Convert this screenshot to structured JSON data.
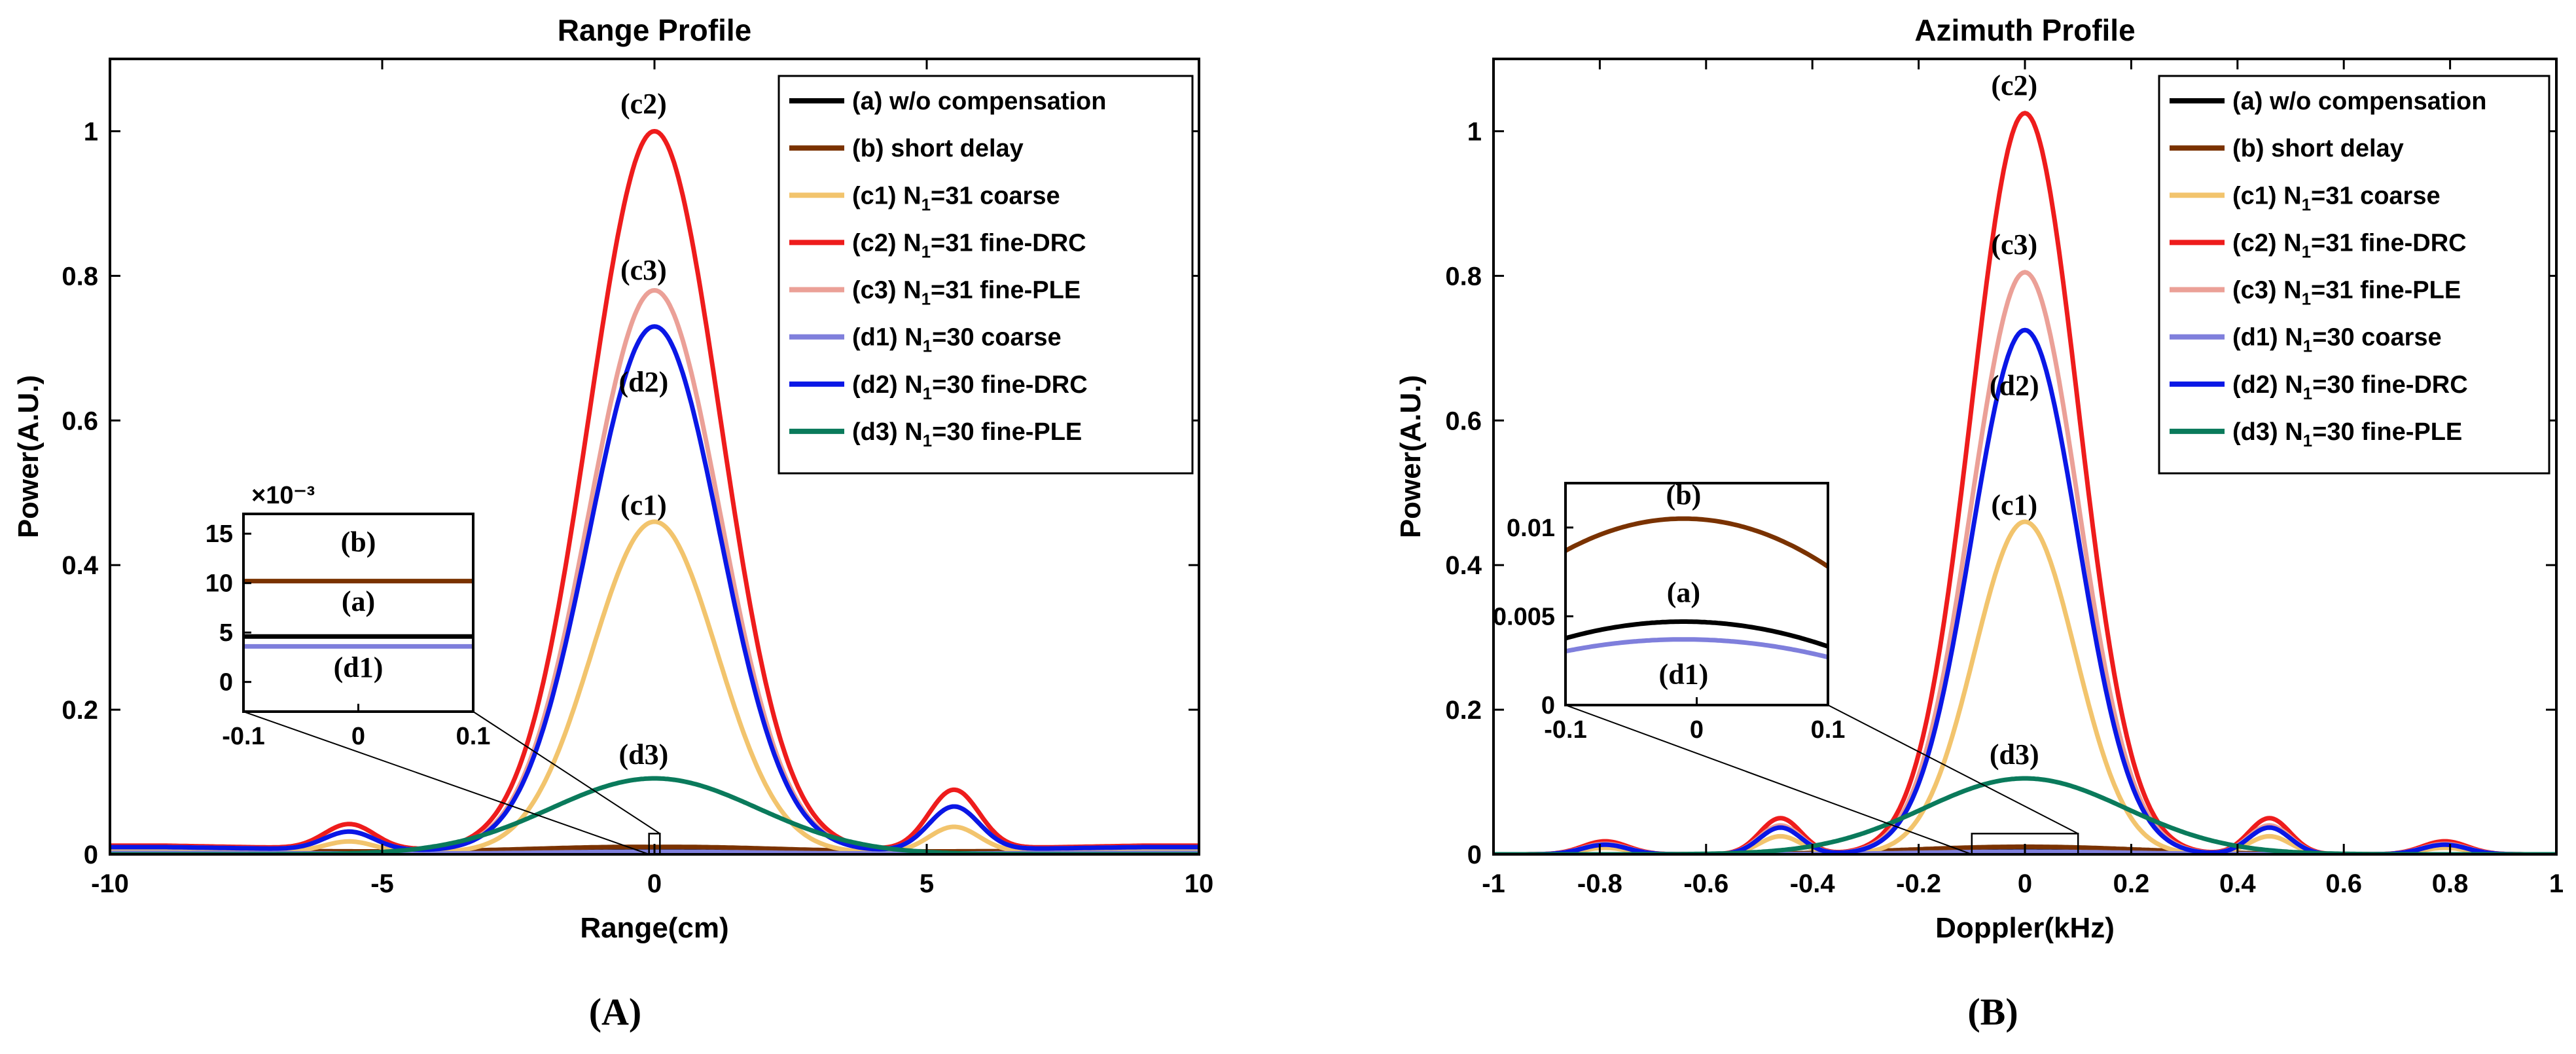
{
  "colors": {
    "a": "#000000",
    "b": "#7a3200",
    "c1": "#f2c46d",
    "c2": "#ee1c1c",
    "c3": "#eba097",
    "d1": "#7f7fdc",
    "d2": "#0a17e6",
    "d3": "#0a7a5b"
  },
  "chart_data": [
    {
      "type": "line",
      "panel_label": "(A)",
      "title": "Range Profile",
      "xlabel": "Range(cm)",
      "ylabel": "Power(A.U.)",
      "xlim": [
        -10,
        10
      ],
      "ylim": [
        0,
        1.1
      ],
      "xticks": [
        -10,
        -5,
        0,
        5,
        10
      ],
      "xtick_labels": [
        "-10",
        "-5",
        "0",
        "5",
        "10"
      ],
      "yticks": [
        0,
        0.2,
        0.4,
        0.6,
        0.8,
        1
      ],
      "ytick_labels": [
        "0",
        "0.2",
        "0.4",
        "0.6",
        "0.8",
        "1"
      ],
      "legend_position": "top-right",
      "series": [
        {
          "key": "a",
          "label": "(a) w/o compensation",
          "peak": 0.0045,
          "sigma": 1.9,
          "side_lobe": 0.0,
          "floor": 0.003
        },
        {
          "key": "b",
          "label": "(b) short delay",
          "peak": 0.0102,
          "sigma": 2.2,
          "side_lobe": 0.0,
          "floor": 0.006
        },
        {
          "key": "c1",
          "label": "(c1) N1=31 coarse",
          "peak": 0.46,
          "sigma": 1.15,
          "side_lobe": 0.035,
          "floor": 0.005
        },
        {
          "key": "c2",
          "label": "(c2) N1=31 fine-DRC",
          "peak": 1.0,
          "sigma": 1.2,
          "side_lobe": 0.082,
          "floor": 0.012
        },
        {
          "key": "c3",
          "label": "(c3) N1=31 fine-PLE",
          "peak": 0.78,
          "sigma": 1.2,
          "side_lobe": 0.06,
          "floor": 0.01
        },
        {
          "key": "d1",
          "label": "(d1) N1=30 coarse",
          "peak": 0.0035,
          "sigma": 1.9,
          "side_lobe": 0.0,
          "floor": 0.002
        },
        {
          "key": "d2",
          "label": "(d2) N1=30 fine-DRC",
          "peak": 0.73,
          "sigma": 1.2,
          "side_lobe": 0.06,
          "floor": 0.01
        },
        {
          "key": "d3",
          "label": "(d3) N1=30 fine-PLE",
          "peak": 0.105,
          "sigma": 1.9,
          "side_lobe": 0.0,
          "floor": 0.0
        }
      ],
      "annotations": [
        {
          "text": "(c2)",
          "x": -0.2,
          "y": 1.025
        },
        {
          "text": "(c3)",
          "x": -0.2,
          "y": 0.795
        },
        {
          "text": "(d2)",
          "x": -0.2,
          "y": 0.64
        },
        {
          "text": "(c1)",
          "x": -0.2,
          "y": 0.47
        },
        {
          "text": "(d3)",
          "x": -0.2,
          "y": 0.125
        }
      ],
      "zoom_box": {
        "x": [
          -0.1,
          0.1
        ],
        "y": [
          0,
          0.016
        ]
      },
      "inset": {
        "xlim": [
          -0.1,
          0.1
        ],
        "ylim": [
          -0.003,
          0.017
        ],
        "xtick_labels": [
          "-0.1",
          "0",
          "0.1"
        ],
        "xticks": [
          -0.1,
          0,
          0.1
        ],
        "yticks": [
          0,
          0.005,
          0.01,
          0.015
        ],
        "ytick_labels": [
          "0",
          "5",
          "10",
          "15"
        ],
        "exponent": "×10⁻³",
        "lines": [
          {
            "key": "b",
            "y": 0.0102
          },
          {
            "key": "a",
            "y": 0.0046
          },
          {
            "key": "d1",
            "y": 0.0036
          }
        ],
        "annotations": [
          {
            "text": "(b)",
            "x": 0.0,
            "y": 0.0132
          },
          {
            "text": "(a)",
            "x": 0.0,
            "y": 0.0072
          },
          {
            "text": "(d1)",
            "x": 0.0,
            "y": 0.0005
          }
        ]
      }
    },
    {
      "type": "line",
      "panel_label": "(B)",
      "title": "Azimuth Profile",
      "xlabel": "Doppler(kHz)",
      "ylabel": "Power(A.U.)",
      "xlim": [
        -1,
        1
      ],
      "ylim": [
        0,
        1.1
      ],
      "xticks": [
        -1,
        -0.8,
        -0.6,
        -0.4,
        -0.2,
        0,
        0.2,
        0.4,
        0.6,
        0.8,
        1
      ],
      "xtick_labels": [
        "-1",
        "-0.8",
        "-0.6",
        "-0.4",
        "-0.2",
        "0",
        "0.2",
        "0.4",
        "0.6",
        "0.8",
        "1"
      ],
      "yticks": [
        0,
        0.2,
        0.4,
        0.6,
        0.8,
        1
      ],
      "ytick_labels": [
        "0",
        "0.2",
        "0.4",
        "0.6",
        "0.8",
        "1"
      ],
      "legend_position": "top-right",
      "series": [
        {
          "key": "a",
          "label": "(a) w/o compensation",
          "peak": 0.0045,
          "sigma": 0.2,
          "side_lobe": 0.0,
          "floor": 0.0
        },
        {
          "key": "b",
          "label": "(b) short delay",
          "peak": 0.0105,
          "sigma": 0.22,
          "side_lobe": 0.0,
          "floor": 0.0
        },
        {
          "key": "c1",
          "label": "(c1) N1=31 coarse",
          "peak": 0.46,
          "sigma": 0.095,
          "side_lobe": 0.025,
          "floor": 0.0
        },
        {
          "key": "c2",
          "label": "(c2) N1=31 fine-DRC",
          "peak": 1.025,
          "sigma": 0.1,
          "side_lobe": 0.05,
          "floor": 0.0
        },
        {
          "key": "c3",
          "label": "(c3) N1=31 fine-PLE",
          "peak": 0.805,
          "sigma": 0.1,
          "side_lobe": 0.04,
          "floor": 0.0
        },
        {
          "key": "d1",
          "label": "(d1) N1=30 coarse",
          "peak": 0.0036,
          "sigma": 0.2,
          "side_lobe": 0.0,
          "floor": 0.0
        },
        {
          "key": "d2",
          "label": "(d2) N1=30 fine-DRC",
          "peak": 0.725,
          "sigma": 0.1,
          "side_lobe": 0.037,
          "floor": 0.0
        },
        {
          "key": "d3",
          "label": "(d3) N1=30 fine-PLE",
          "peak": 0.105,
          "sigma": 0.19,
          "side_lobe": 0.0,
          "floor": 0.0
        }
      ],
      "annotations": [
        {
          "text": "(c2)",
          "x": -0.02,
          "y": 1.05
        },
        {
          "text": "(c3)",
          "x": -0.02,
          "y": 0.83
        },
        {
          "text": "(d2)",
          "x": -0.02,
          "y": 0.635
        },
        {
          "text": "(c1)",
          "x": -0.02,
          "y": 0.47
        },
        {
          "text": "(d3)",
          "x": -0.02,
          "y": 0.125
        }
      ],
      "zoom_box": {
        "x": [
          -0.1,
          0.1
        ],
        "y": [
          0,
          0.016
        ]
      },
      "inset": {
        "xlim": [
          -0.1,
          0.1
        ],
        "ylim": [
          0,
          0.0125
        ],
        "xtick_labels": [
          "-0.1",
          "0",
          "0.1"
        ],
        "xticks": [
          -0.1,
          0,
          0.1
        ],
        "yticks": [
          0,
          0.005,
          0.01
        ],
        "ytick_labels": [
          "0",
          "0.005",
          "0.01"
        ],
        "exponent": "",
        "curves": [
          {
            "key": "b",
            "peak": 0.0105,
            "edge": 0.0078
          },
          {
            "key": "a",
            "peak": 0.0047,
            "edge": 0.0033
          },
          {
            "key": "d1",
            "peak": 0.0037,
            "edge": 0.0027
          }
        ],
        "annotations": [
          {
            "text": "(b)",
            "x": -0.01,
            "y": 0.0113
          },
          {
            "text": "(a)",
            "x": -0.01,
            "y": 0.0058
          },
          {
            "text": "(d1)",
            "x": -0.01,
            "y": 0.0012
          }
        ]
      }
    }
  ]
}
